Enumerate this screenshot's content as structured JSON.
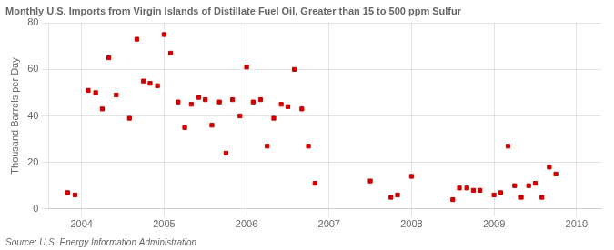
{
  "chart_data": {
    "type": "scatter",
    "title": "Monthly U.S. Imports from Virgin Islands of Distillate Fuel Oil, Greater than 15 to 500 ppm Sulfur",
    "ylabel": "Thousand Barrels per Day",
    "annotations": [
      "Source: U.S. Energy Information Administration"
    ],
    "x": [
      2003.83,
      2003.92,
      2004.08,
      2004.17,
      2004.25,
      2004.33,
      2004.42,
      2004.58,
      2004.67,
      2004.75,
      2004.83,
      2004.92,
      2005.0,
      2005.08,
      2005.17,
      2005.25,
      2005.33,
      2005.42,
      2005.5,
      2005.58,
      2005.67,
      2005.75,
      2005.83,
      2005.92,
      2006.0,
      2006.08,
      2006.17,
      2006.25,
      2006.33,
      2006.42,
      2006.5,
      2006.58,
      2006.67,
      2006.75,
      2006.83,
      2007.5,
      2007.75,
      2007.83,
      2008.0,
      2008.5,
      2008.58,
      2008.67,
      2008.75,
      2008.83,
      2009.0,
      2009.08,
      2009.17,
      2009.25,
      2009.33,
      2009.42,
      2009.5,
      2009.58,
      2009.67,
      2009.75
    ],
    "values": [
      7,
      6,
      51,
      50,
      43,
      65,
      49,
      39,
      73,
      55,
      54,
      53,
      75,
      67,
      46,
      35,
      45,
      48,
      47,
      36,
      46,
      24,
      47,
      40,
      61,
      46,
      47,
      27,
      39,
      45,
      44,
      60,
      43,
      27,
      11,
      12,
      5,
      6,
      14,
      4,
      9,
      9,
      8,
      8,
      6,
      7,
      27,
      10,
      5,
      10,
      11,
      5,
      18,
      15
    ],
    "color": "#cc0000",
    "marker": "square",
    "xlim": [
      2003.6,
      2010.3
    ],
    "xticks": [
      2004,
      2005,
      2006,
      2007,
      2008,
      2009,
      2010
    ],
    "ylim": [
      0,
      80
    ],
    "yticks": [
      0,
      20,
      40,
      60,
      80
    ],
    "grid": true
  }
}
